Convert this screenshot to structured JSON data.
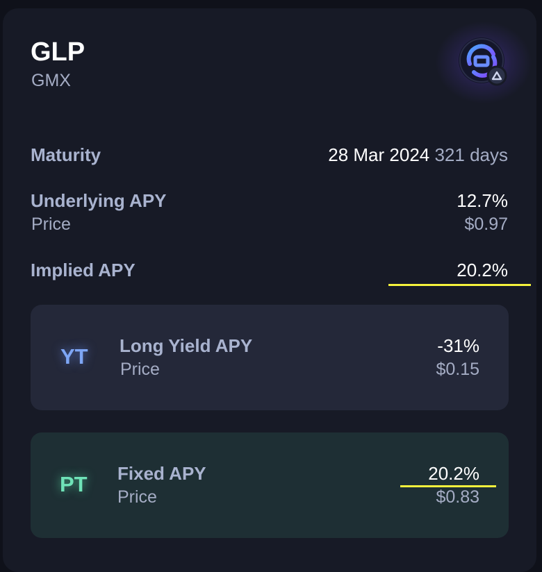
{
  "asset": {
    "title": "GLP",
    "protocol": "GMX",
    "logo_icon": "gmx-glp-logo-icon"
  },
  "maturity": {
    "label": "Maturity",
    "date": "28 Mar 2024",
    "days": "321 days"
  },
  "underlying": {
    "label": "Underlying APY",
    "apy": "12.7%",
    "price_label": "Price",
    "price": "$0.97"
  },
  "implied": {
    "label": "Implied APY",
    "apy": "20.2%"
  },
  "yt": {
    "token": "YT",
    "label": "Long Yield APY",
    "apy": "-31%",
    "price_label": "Price",
    "price": "$0.15"
  },
  "pt": {
    "token": "PT",
    "label": "Fixed APY",
    "apy": "20.2%",
    "price_label": "Price",
    "price": "$0.83"
  },
  "colors": {
    "highlight": "#f5f23c",
    "yt_accent": "#7ea6f5",
    "pt_accent": "#6fe3b8"
  }
}
